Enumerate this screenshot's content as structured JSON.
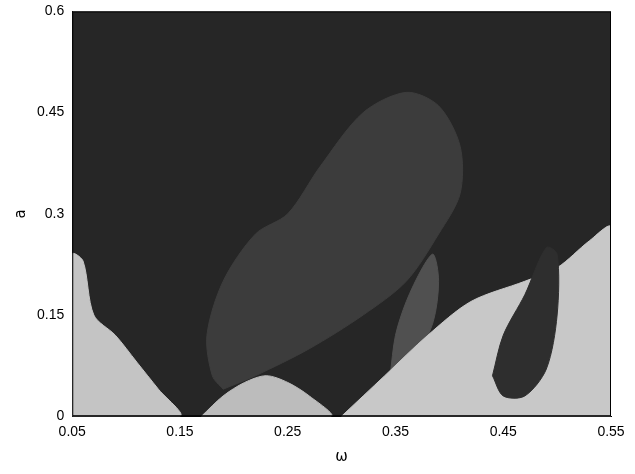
{
  "chart_data": {
    "type": "area",
    "x_label": "ω",
    "y_label": "a",
    "xlim": [
      0.05,
      0.55
    ],
    "xticks": [
      0.05,
      0.15,
      0.25,
      0.35,
      0.45,
      0.55
    ],
    "ylim": [
      0,
      0.6
    ],
    "yticks": [
      0,
      0.15,
      0.3,
      0.45,
      0.6
    ],
    "grid": false,
    "color": "#262626",
    "series": [
      {
        "color": "#3c3c3c",
        "x": [
          0.19,
          0.18,
          0.175,
          0.19,
          0.22,
          0.25,
          0.28,
          0.32,
          0.36,
          0.39,
          0.41,
          0.41,
          0.39,
          0.36,
          0.32,
          0.27,
          0.22,
          0.19
        ],
        "values": [
          0.04,
          0.06,
          0.12,
          0.2,
          0.27,
          0.3,
          0.37,
          0.45,
          0.48,
          0.46,
          0.4,
          0.33,
          0.27,
          0.2,
          0.15,
          0.1,
          0.06,
          0.04
        ]
      },
      {
        "color": "#505050",
        "x": [
          0.345,
          0.35,
          0.36,
          0.375,
          0.385,
          0.39,
          0.385,
          0.37,
          0.355,
          0.345
        ],
        "values": [
          0.06,
          0.12,
          0.17,
          0.22,
          0.24,
          0.2,
          0.14,
          0.09,
          0.06,
          0.06
        ]
      },
      {
        "color": "#c4c4c4",
        "x": [
          0.05,
          0.05,
          0.06,
          0.07,
          0.09,
          0.11,
          0.13,
          0.15,
          0.05
        ],
        "values": [
          0.0,
          0.24,
          0.23,
          0.15,
          0.12,
          0.08,
          0.04,
          0.0,
          0.0
        ]
      },
      {
        "color": "#bcbcbc",
        "x": [
          0.17,
          0.19,
          0.21,
          0.23,
          0.25,
          0.27,
          0.29,
          0.17
        ],
        "values": [
          0.0,
          0.03,
          0.05,
          0.06,
          0.05,
          0.03,
          0.0,
          0.0
        ]
      },
      {
        "color": "#c8c8c8",
        "x": [
          0.3,
          0.34,
          0.38,
          0.42,
          0.47,
          0.5,
          0.53,
          0.55,
          0.55,
          0.3
        ],
        "values": [
          0.0,
          0.06,
          0.12,
          0.17,
          0.2,
          0.22,
          0.26,
          0.28,
          0.0,
          0.0
        ]
      },
      {
        "color": "#2e2e2e",
        "x": [
          0.44,
          0.45,
          0.47,
          0.49,
          0.5,
          0.5,
          0.49,
          0.47,
          0.45,
          0.44
        ],
        "values": [
          0.06,
          0.12,
          0.18,
          0.25,
          0.24,
          0.15,
          0.07,
          0.03,
          0.03,
          0.06
        ]
      }
    ]
  }
}
